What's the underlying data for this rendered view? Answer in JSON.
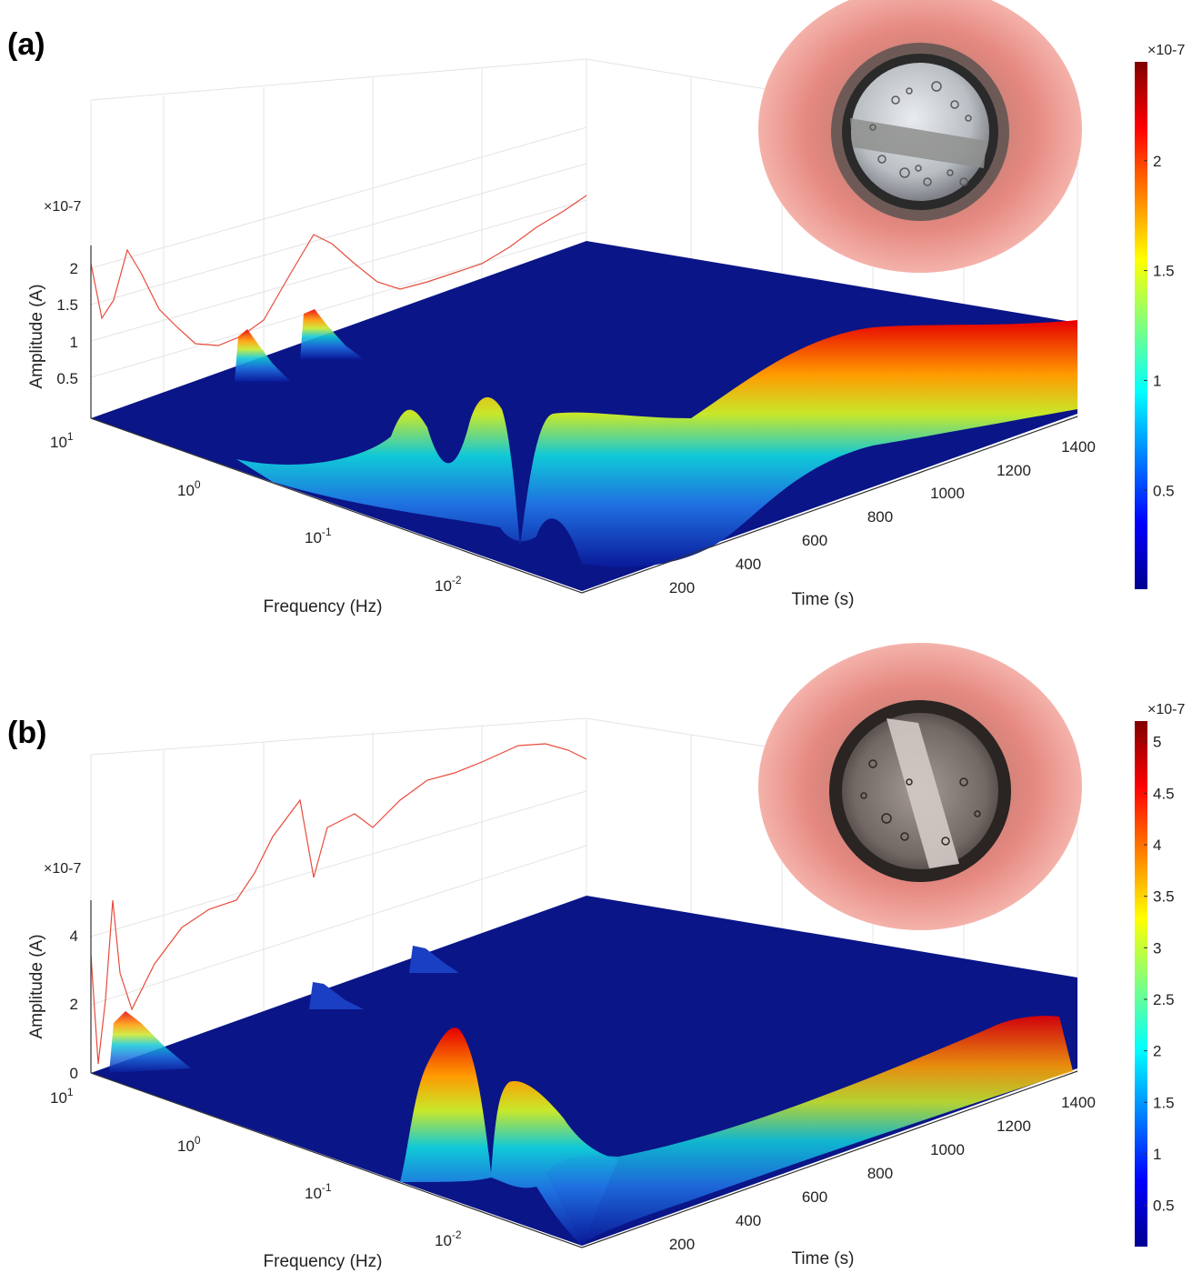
{
  "chart_data": [
    {
      "panel": "(a)",
      "type": "surface3d",
      "xlabel": "Time (s)",
      "ylabel": "Frequency (Hz)",
      "zlabel": "Amplitude (A)",
      "z_scale_label": "×10-7",
      "time_ticks": [
        "200",
        "400",
        "600",
        "800",
        "1000",
        "1200",
        "1400"
      ],
      "freq_ticks": [
        "10^1",
        "10^0",
        "10^-1",
        "10^-2"
      ],
      "z_ticks": [
        "0.5",
        "1",
        "1.5",
        "2"
      ],
      "colorbar": {
        "scale_label": "×10-7",
        "ticks": [
          "0.5",
          "1",
          "1.5",
          "2"
        ],
        "max": 2.45
      },
      "time_range": [
        0,
        1450
      ],
      "projection_curve_z": [
        2.1,
        1.2,
        2.3,
        1.4,
        1.1,
        0.95,
        0.9,
        1.0,
        1.2,
        2.0,
        2.2,
        1.7,
        1.3,
        1.0,
        1.0,
        1.05,
        1.1,
        1.2,
        1.35,
        1.5,
        1.6,
        1.7
      ],
      "ridge_profile_z": [
        0.0,
        1.3,
        0.1,
        1.7,
        0.2,
        1.9,
        1.6,
        2.3,
        2.4,
        2.2,
        1.7,
        1.2
      ],
      "ridge_time": [
        250,
        330,
        400,
        470,
        530,
        590,
        650,
        750,
        900,
        1100,
        1300,
        1430
      ]
    },
    {
      "panel": "(b)",
      "type": "surface3d",
      "xlabel": "Time (s)",
      "ylabel": "Frequency (Hz)",
      "zlabel": "Amplitude (A)",
      "z_scale_label": "×10-7",
      "time_ticks": [
        "200",
        "400",
        "600",
        "800",
        "1000",
        "1200",
        "1400"
      ],
      "freq_ticks": [
        "10^1",
        "10^0",
        "10^-1",
        "10^-2"
      ],
      "z_ticks": [
        "0",
        "2",
        "4"
      ],
      "colorbar": {
        "scale_label": "×10-7",
        "ticks": [
          "0.5",
          "1",
          "1.5",
          "2",
          "2.5",
          "3",
          "3.5",
          "4",
          "4.5",
          "5"
        ],
        "max": 5.2
      },
      "time_range": [
        0,
        1450
      ],
      "projection_curve_z": [
        0.2,
        5.0,
        1.0,
        1.8,
        2.4,
        2.9,
        3.1,
        3.4,
        3.6,
        3.9,
        4.2,
        4.5,
        4.7,
        5.0,
        5.3,
        5.5,
        5.6,
        5.5
      ],
      "ridge_profile_z": [
        0.4,
        1.6,
        0.2,
        4.3,
        2.6,
        3.2,
        1.4,
        1.6,
        1.8,
        2.0,
        2.1
      ],
      "ridge_time": [
        250,
        330,
        400,
        440,
        480,
        520,
        600,
        800,
        1000,
        1200,
        1400
      ]
    }
  ]
}
